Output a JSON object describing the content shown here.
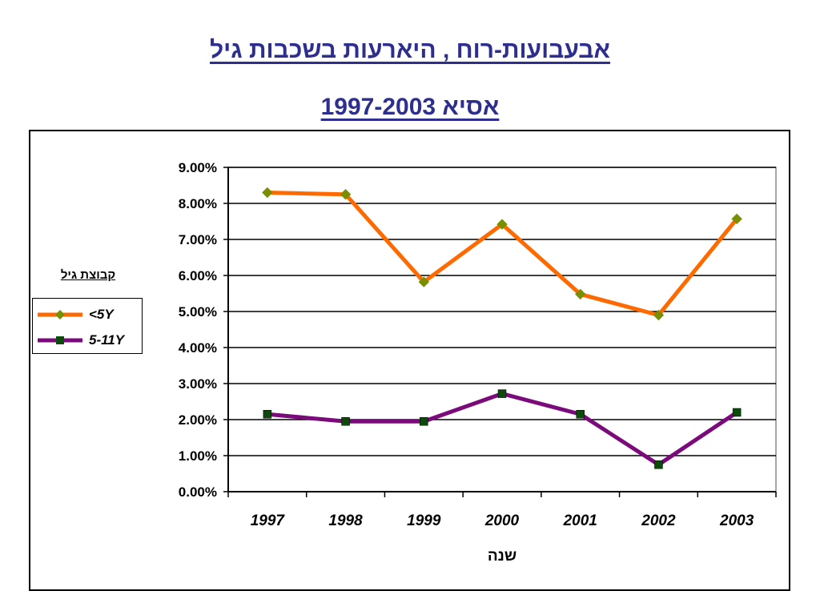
{
  "titles": {
    "line1": "אבעבועות-רוח , היארעות בשכבות גיל",
    "line2": "אסיא 1997-2003"
  },
  "legend": {
    "title": "קבוצת גיל"
  },
  "colors": {
    "series1_line": "#ff6a00",
    "series1_marker": "#7a8f00",
    "series2_line": "#7b0a7b",
    "series2_marker": "#0b4a0b",
    "title": "#2e2e8f"
  },
  "chart_data": {
    "type": "line",
    "x": [
      "1997",
      "1998",
      "1999",
      "2000",
      "2001",
      "2002",
      "2003"
    ],
    "series": [
      {
        "name": "<5Y",
        "values": [
          8.3,
          8.25,
          5.82,
          7.42,
          5.48,
          4.9,
          7.57
        ]
      },
      {
        "name": "5-11Y",
        "values": [
          2.15,
          1.95,
          1.95,
          2.72,
          2.15,
          0.75,
          2.2
        ]
      }
    ],
    "y_ticks": [
      "0.00%",
      "1.00%",
      "2.00%",
      "3.00%",
      "4.00%",
      "5.00%",
      "6.00%",
      "7.00%",
      "8.00%",
      "9.00%"
    ],
    "ylim": [
      0,
      9
    ],
    "xlabel": "שנה",
    "ylabel": "",
    "grid": true,
    "legend_position": "left"
  }
}
